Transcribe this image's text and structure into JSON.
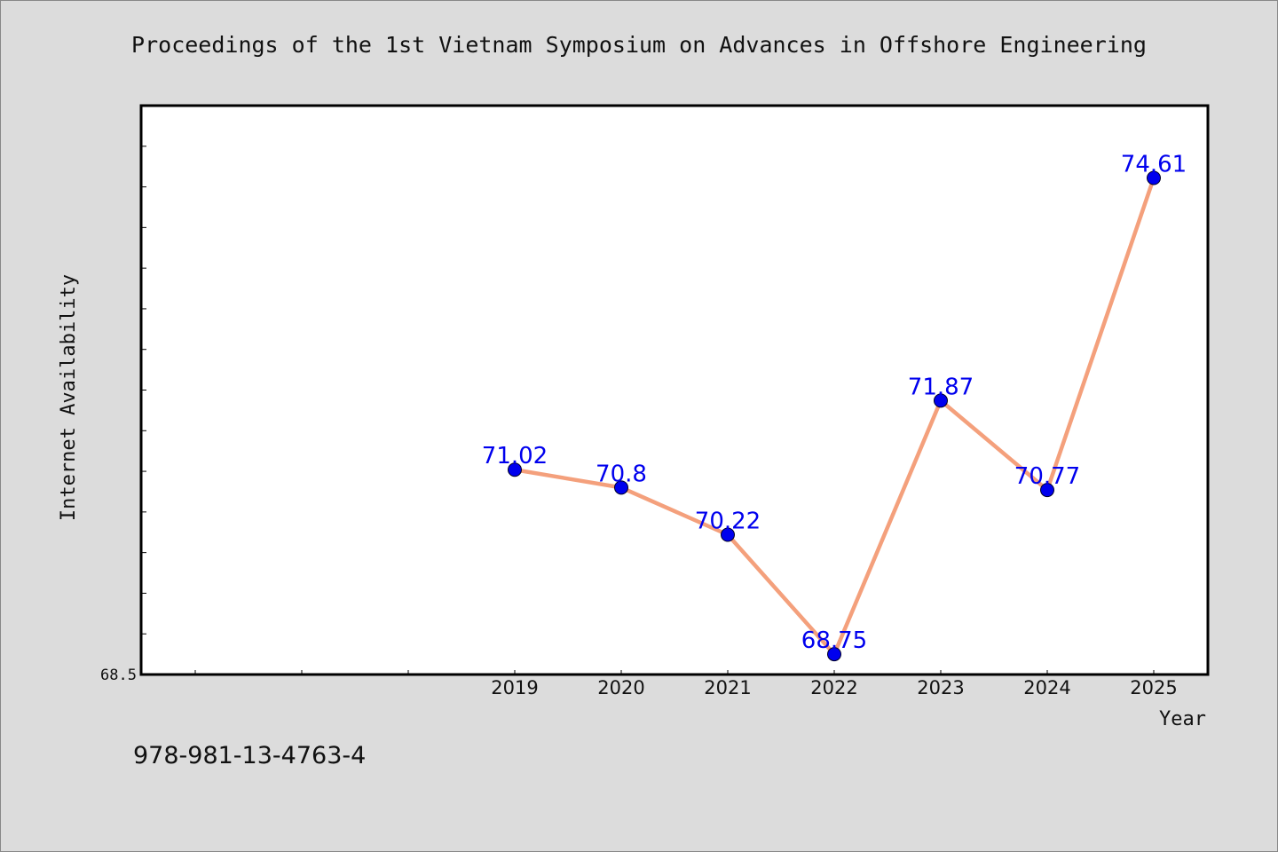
{
  "footer": {
    "isbn": "978-981-13-4763-4"
  },
  "chart_data": {
    "type": "line",
    "title": "Proceedings of the 1st Vietnam Symposium on Advances in Offshore Engineering",
    "xlabel": "Year",
    "ylabel": "Internet Availability",
    "categories": [
      "2019",
      "2020",
      "2021",
      "2022",
      "2023",
      "2024",
      "2025"
    ],
    "series": [
      {
        "values": [
          71.02,
          70.8,
          70.22,
          68.75,
          71.87,
          70.77,
          74.61
        ]
      }
    ],
    "data_labels": [
      "71.02",
      "70.8",
      "70.22",
      "68.75",
      "71.87",
      "70.77",
      "74.61"
    ],
    "ytick_labels": [
      "68.5"
    ],
    "ylim": [
      68.5,
      75.5
    ],
    "grid": false,
    "legend": "none",
    "colors": {
      "line": "#f4a07c",
      "marker": "#0000ee",
      "label": "#0000ee"
    }
  }
}
